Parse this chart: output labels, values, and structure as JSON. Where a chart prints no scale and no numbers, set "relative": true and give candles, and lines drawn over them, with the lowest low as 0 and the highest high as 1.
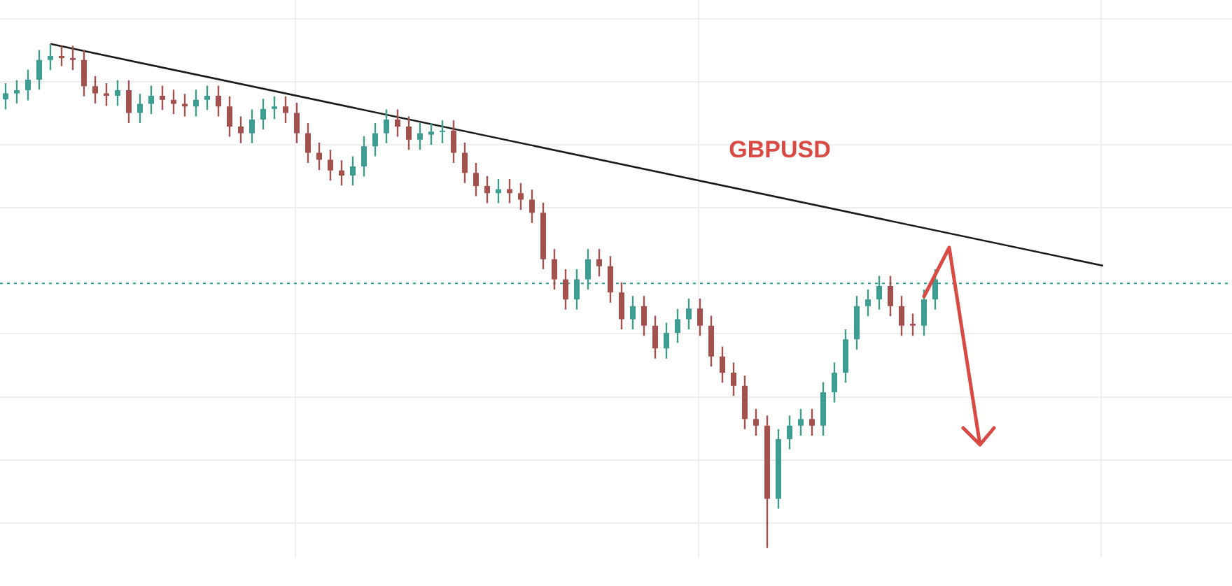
{
  "chart_data": {
    "type": "candlestick",
    "title": "GBPUSD",
    "relative": true,
    "grid": true,
    "categories": [
      null,
      null,
      null,
      null,
      null,
      null,
      null,
      null,
      null,
      null,
      null,
      null,
      null,
      null,
      null,
      null,
      null,
      null,
      null,
      null,
      null,
      null,
      null,
      null,
      null,
      null,
      null,
      null,
      null,
      null,
      null,
      null,
      null,
      null,
      null,
      null,
      null,
      null,
      null,
      null,
      null,
      null,
      null,
      null,
      null,
      null,
      null,
      null,
      null,
      null,
      null,
      null,
      null,
      null,
      null,
      null,
      null,
      null,
      null,
      null,
      null,
      null,
      null,
      null,
      null,
      null,
      null,
      null,
      null,
      null,
      null,
      null,
      null,
      null,
      null,
      null,
      null,
      null,
      null,
      null,
      null,
      null,
      null,
      null,
      null,
      null,
      null,
      null,
      null,
      null,
      null,
      null,
      null,
      null,
      null,
      null,
      null,
      null,
      null,
      null,
      null,
      null,
      null,
      null,
      null,
      null,
      null,
      null,
      null,
      null
    ],
    "ohlc": [
      [
        0.89,
        0.922,
        0.87,
        0.902
      ],
      [
        0.902,
        0.928,
        0.882,
        0.908
      ],
      [
        0.908,
        0.949,
        0.888,
        0.929
      ],
      [
        0.929,
        0.988,
        0.909,
        0.968
      ],
      [
        0.968,
        1.0,
        0.948,
        0.976
      ],
      [
        0.976,
        0.996,
        0.956,
        0.972
      ],
      [
        0.972,
        0.996,
        0.948,
        0.968
      ],
      [
        0.968,
        0.988,
        0.896,
        0.916
      ],
      [
        0.916,
        0.936,
        0.882,
        0.902
      ],
      [
        0.902,
        0.922,
        0.877,
        0.897
      ],
      [
        0.897,
        0.928,
        0.877,
        0.908
      ],
      [
        0.908,
        0.928,
        0.843,
        0.863
      ],
      [
        0.863,
        0.901,
        0.843,
        0.881
      ],
      [
        0.881,
        0.917,
        0.861,
        0.897
      ],
      [
        0.897,
        0.917,
        0.869,
        0.889
      ],
      [
        0.889,
        0.909,
        0.861,
        0.881
      ],
      [
        0.881,
        0.901,
        0.856,
        0.876
      ],
      [
        0.876,
        0.909,
        0.856,
        0.889
      ],
      [
        0.889,
        0.917,
        0.869,
        0.897
      ],
      [
        0.897,
        0.917,
        0.856,
        0.876
      ],
      [
        0.876,
        0.896,
        0.816,
        0.836
      ],
      [
        0.836,
        0.856,
        0.803,
        0.823
      ],
      [
        0.823,
        0.87,
        0.803,
        0.85
      ],
      [
        0.85,
        0.891,
        0.83,
        0.871
      ],
      [
        0.871,
        0.896,
        0.851,
        0.876
      ],
      [
        0.876,
        0.896,
        0.843,
        0.863
      ],
      [
        0.863,
        0.883,
        0.803,
        0.823
      ],
      [
        0.823,
        0.843,
        0.764,
        0.784
      ],
      [
        0.784,
        0.804,
        0.75,
        0.77
      ],
      [
        0.77,
        0.79,
        0.729,
        0.749
      ],
      [
        0.749,
        0.769,
        0.719,
        0.739
      ],
      [
        0.739,
        0.777,
        0.719,
        0.757
      ],
      [
        0.757,
        0.817,
        0.737,
        0.797
      ],
      [
        0.797,
        0.843,
        0.777,
        0.823
      ],
      [
        0.823,
        0.87,
        0.803,
        0.85
      ],
      [
        0.85,
        0.87,
        0.816,
        0.836
      ],
      [
        0.836,
        0.856,
        0.79,
        0.81
      ],
      [
        0.81,
        0.843,
        0.79,
        0.823
      ],
      [
        0.82,
        0.843,
        0.8,
        0.826
      ],
      [
        0.826,
        0.848,
        0.803,
        0.828
      ],
      [
        0.828,
        0.848,
        0.764,
        0.784
      ],
      [
        0.784,
        0.804,
        0.724,
        0.744
      ],
      [
        0.744,
        0.764,
        0.698,
        0.718
      ],
      [
        0.718,
        0.738,
        0.684,
        0.704
      ],
      [
        0.704,
        0.732,
        0.684,
        0.712
      ],
      [
        0.712,
        0.732,
        0.684,
        0.704
      ],
      [
        0.704,
        0.724,
        0.671,
        0.691
      ],
      [
        0.691,
        0.711,
        0.645,
        0.665
      ],
      [
        0.665,
        0.685,
        0.553,
        0.573
      ],
      [
        0.573,
        0.593,
        0.513,
        0.533
      ],
      [
        0.533,
        0.553,
        0.473,
        0.493
      ],
      [
        0.493,
        0.553,
        0.473,
        0.533
      ],
      [
        0.533,
        0.593,
        0.513,
        0.573
      ],
      [
        0.573,
        0.593,
        0.539,
        0.559
      ],
      [
        0.559,
        0.579,
        0.487,
        0.507
      ],
      [
        0.507,
        0.527,
        0.434,
        0.454
      ],
      [
        0.454,
        0.5,
        0.434,
        0.48
      ],
      [
        0.48,
        0.5,
        0.421,
        0.441
      ],
      [
        0.441,
        0.461,
        0.376,
        0.396
      ],
      [
        0.396,
        0.447,
        0.376,
        0.427
      ],
      [
        0.427,
        0.474,
        0.407,
        0.454
      ],
      [
        0.454,
        0.495,
        0.434,
        0.475
      ],
      [
        0.475,
        0.495,
        0.421,
        0.441
      ],
      [
        0.441,
        0.461,
        0.36,
        0.38
      ],
      [
        0.38,
        0.4,
        0.328,
        0.348
      ],
      [
        0.348,
        0.368,
        0.302,
        0.322
      ],
      [
        0.322,
        0.342,
        0.236,
        0.256
      ],
      [
        0.256,
        0.276,
        0.223,
        0.243
      ],
      [
        0.243,
        0.263,
        0.0,
        0.098
      ],
      [
        0.098,
        0.236,
        0.078,
        0.216
      ],
      [
        0.216,
        0.263,
        0.196,
        0.243
      ],
      [
        0.243,
        0.276,
        0.223,
        0.256
      ],
      [
        0.256,
        0.276,
        0.223,
        0.243
      ],
      [
        0.243,
        0.329,
        0.223,
        0.309
      ],
      [
        0.309,
        0.368,
        0.289,
        0.348
      ],
      [
        0.348,
        0.434,
        0.328,
        0.414
      ],
      [
        0.414,
        0.5,
        0.394,
        0.48
      ],
      [
        0.48,
        0.513,
        0.46,
        0.493
      ],
      [
        0.493,
        0.54,
        0.473,
        0.52
      ],
      [
        0.52,
        0.54,
        0.46,
        0.48
      ],
      [
        0.48,
        0.5,
        0.421,
        0.441
      ],
      [
        0.445,
        0.465,
        0.421,
        0.441
      ],
      [
        0.441,
        0.513,
        0.421,
        0.493
      ],
      [
        0.493,
        0.553,
        0.473,
        0.533
      ],
      null,
      null,
      null,
      null,
      null,
      null,
      null,
      null,
      null,
      null,
      null,
      null,
      null,
      null,
      null,
      null,
      null,
      null,
      null,
      null,
      null,
      null,
      null,
      null,
      null,
      null
    ],
    "series": [
      {
        "type": "line",
        "color": "#1a1a1a",
        "values": [
          null,
          null,
          null,
          null,
          1.0,
          null,
          null,
          null,
          null,
          null,
          null,
          null,
          null,
          null,
          null,
          null,
          null,
          null,
          null,
          null,
          null,
          null,
          null,
          null,
          null,
          null,
          null,
          null,
          null,
          null,
          null,
          null,
          null,
          null,
          null,
          null,
          null,
          null,
          null,
          null,
          null,
          null,
          null,
          null,
          null,
          null,
          null,
          null,
          null,
          null,
          null,
          null,
          null,
          null,
          null,
          null,
          null,
          null,
          null,
          null,
          null,
          null,
          null,
          null,
          null,
          null,
          null,
          null,
          null,
          null,
          null,
          null,
          null,
          null,
          null,
          null,
          null,
          null,
          null,
          null,
          null,
          null,
          null,
          null,
          null,
          null,
          null,
          null,
          null,
          null,
          null,
          null,
          null,
          null,
          null,
          null,
          null,
          null,
          0.56,
          null,
          null,
          null,
          null,
          null,
          null,
          null,
          null,
          null,
          null,
          null
        ]
      }
    ],
    "ref_lines": [
      {
        "axis": "y",
        "value": 0.525,
        "color": "#2a9d9a",
        "line_style": "dotted"
      }
    ]
  }
}
